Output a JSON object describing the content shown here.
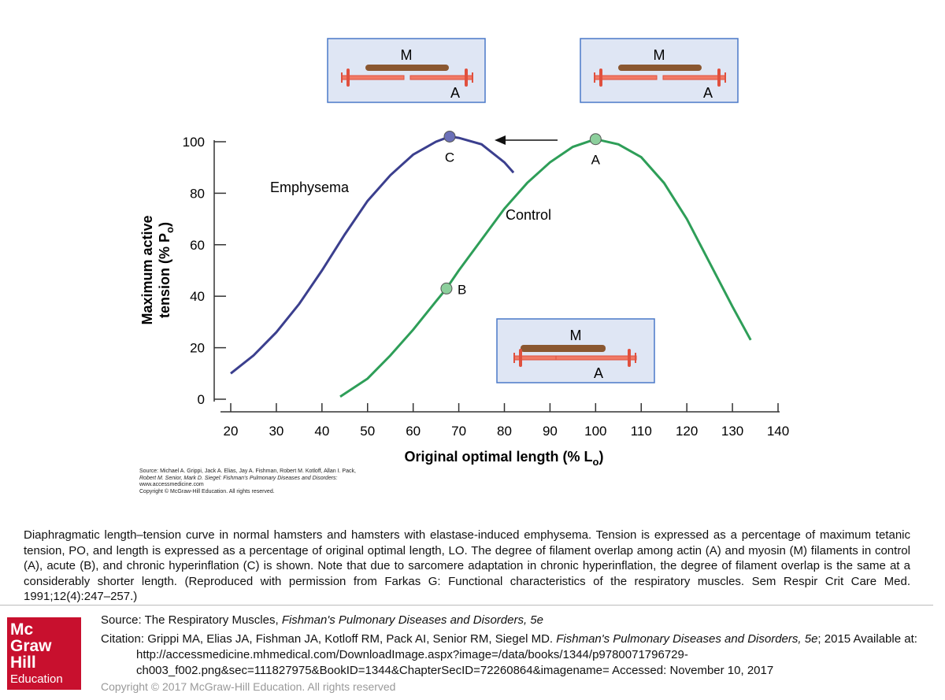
{
  "chart_data": {
    "type": "line",
    "ylabel": [
      "Maximum active",
      "tension (% P",
      "o",
      ")"
    ],
    "xlabel": [
      "Original optimal length (% L",
      "o",
      ")"
    ],
    "xlim": [
      20,
      140
    ],
    "xticks": [
      20,
      30,
      40,
      50,
      60,
      70,
      80,
      90,
      100,
      110,
      120,
      130,
      140
    ],
    "ylim": [
      0,
      100
    ],
    "yticks": [
      0,
      20,
      40,
      60,
      80,
      100
    ],
    "series": [
      {
        "name": "Emphysema",
        "color": "#3b3f8e",
        "x": [
          20,
          25,
          30,
          35,
          40,
          45,
          50,
          55,
          60,
          65,
          68,
          70,
          75,
          80,
          82
        ],
        "values": [
          10,
          17,
          26,
          37,
          50,
          64,
          77,
          87,
          95,
          100,
          102,
          101.5,
          99,
          92,
          88
        ]
      },
      {
        "name": "Control",
        "color": "#2e9e58",
        "x": [
          44,
          50,
          55,
          60,
          65,
          67.3,
          70,
          75,
          80,
          85,
          90,
          95,
          100,
          105,
          110,
          115,
          120,
          125,
          130,
          134
        ],
        "values": [
          1,
          8,
          17,
          27,
          38,
          43,
          50,
          62,
          74,
          84,
          92,
          98,
          101,
          99,
          94,
          84,
          70,
          53,
          36,
          23
        ]
      }
    ],
    "points": [
      {
        "label": "C",
        "x": 68,
        "y": 102,
        "color": "#6b70b8"
      },
      {
        "label": "A",
        "x": 100,
        "y": 101,
        "color": "#8ccf9c"
      },
      {
        "label": "B",
        "x": 67.3,
        "y": 43,
        "color": "#8ccf9c"
      }
    ],
    "insets": [
      {
        "myosin": "M",
        "actin": "A"
      },
      {
        "myosin": "M",
        "actin": "A"
      },
      {
        "myosin": "M",
        "actin": "A"
      }
    ]
  },
  "figure_source": [
    "Source: Michael A. Grippi, Jack A. Elias, Jay A. Fishman, Robert M. Kotloff, Allan I. Pack,",
    "Robert M. Senior, Mark D. Siegel: Fishman's Pulmonary Diseases and Disorders:",
    "www.accessmedicine.com",
    "Copyright © McGraw-Hill Education. All rights reserved."
  ],
  "caption": "Diaphragmatic length–tension curve in normal hamsters and hamsters with elastase-induced emphysema. Tension is expressed as a percentage of maximum tetanic tension, PO, and length is expressed as a percentage of original optimal length, LO. The degree of filament overlap among actin (A) and myosin (M) filaments in control (A), acute (B), and chronic hyperinflation (C) is shown. Note that due to sarcomere adaptation in chronic hyperinflation, the degree of filament overlap is the same at a considerably shorter length. (Reproduced with permission from Farkas G: Functional characteristics of the respiratory muscles. Sem Respir Crit Care Med. 1991;12(4):247–257.)",
  "logo": [
    "Mc",
    "Graw",
    "Hill",
    "Education"
  ],
  "source": [
    "Source: The Respiratory Muscles, ",
    "Fishman's Pulmonary Diseases and Disorders, 5e"
  ],
  "citation": [
    "Citation: Grippi MA, Elias JA, Fishman JA, Kotloff RM, Pack AI, Senior RM, Siegel MD. ",
    "Fishman's Pulmonary Diseases and Disorders, 5e",
    "; 2015 Available at: http://accessmedicine.mhmedical.com/DownloadImage.aspx?image=/data/books/1344/p9780071796729-ch003_f002.png&sec=111827975&BookID=1344&ChapterSecID=72260864&imagename= Accessed: November 10, 2017"
  ],
  "copyright": "Copyright © 2017 McGraw-Hill Education. All rights reserved"
}
